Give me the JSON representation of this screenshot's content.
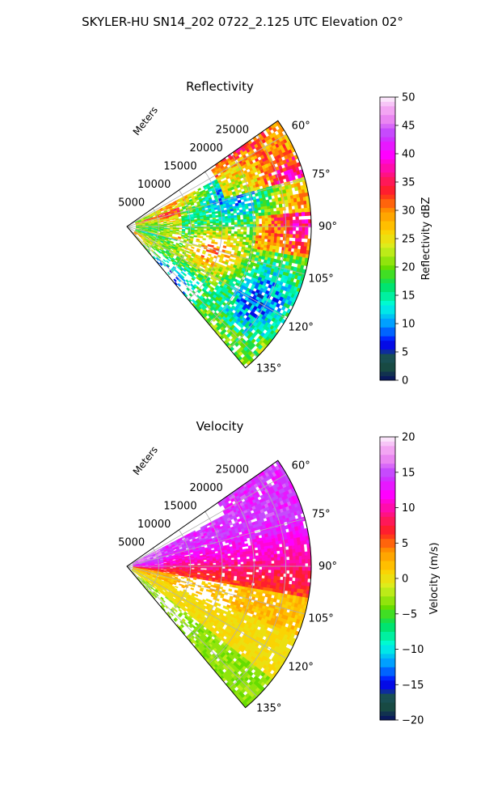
{
  "suptitle": "SKYLER-HU  SN14_202  0722_2.125 UTC Elevation 02°",
  "radial_axis_label": "Meters",
  "chart_data": [
    {
      "type": "heatmap",
      "projection": "polar-sector",
      "title": "Reflectivity",
      "theta_ticks": [
        "60°",
        "75°",
        "90°",
        "105°",
        "120°",
        "135°"
      ],
      "theta_range_deg": [
        55,
        140
      ],
      "r_ticks": [
        "5000",
        "10000",
        "15000",
        "20000",
        "25000"
      ],
      "r_range": [
        0,
        29000
      ],
      "grid": true,
      "colorbar": {
        "label": "Reflectivity dBZ",
        "range": [
          0,
          50
        ],
        "ticks": [
          "0",
          "5",
          "10",
          "15",
          "20",
          "25",
          "30",
          "35",
          "40",
          "45",
          "50"
        ],
        "colormap": [
          "#0a1a5c",
          "#1c5a3a",
          "#0000ff",
          "#00a0ff",
          "#00ffe0",
          "#00e060",
          "#66dd00",
          "#d8f020",
          "#ffd000",
          "#ff8c00",
          "#ff2020",
          "#ff1090",
          "#ff00ff",
          "#c040ff",
          "#f090f0",
          "#fbe4fb"
        ]
      }
    },
    {
      "type": "heatmap",
      "projection": "polar-sector",
      "title": "Velocity",
      "theta_ticks": [
        "60°",
        "75°",
        "90°",
        "105°",
        "120°",
        "135°"
      ],
      "theta_range_deg": [
        55,
        140
      ],
      "r_ticks": [
        "5000",
        "10000",
        "15000",
        "20000",
        "25000"
      ],
      "r_range": [
        0,
        29000
      ],
      "grid": true,
      "colorbar": {
        "label": "Velocity (m/s)",
        "range": [
          -20,
          20
        ],
        "ticks": [
          "−20",
          "−15",
          "−10",
          "−5",
          "0",
          "5",
          "10",
          "15",
          "20"
        ],
        "colormap": [
          "#0a1a5c",
          "#1c5a3a",
          "#0000ff",
          "#00a0ff",
          "#00ffe0",
          "#00e060",
          "#66dd00",
          "#d8f020",
          "#ffd000",
          "#ff8c00",
          "#ff2020",
          "#ff1090",
          "#ff00ff",
          "#c040ff",
          "#f090f0",
          "#fbe4fb"
        ]
      }
    }
  ]
}
